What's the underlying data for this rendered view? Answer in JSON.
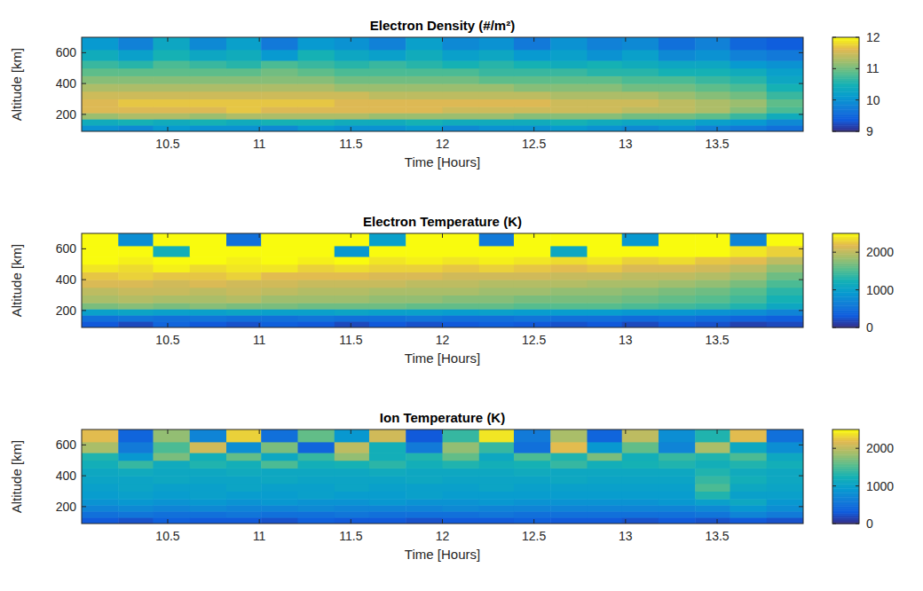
{
  "chart_data": [
    {
      "type": "heatmap",
      "title": "Electron Density (#/m²)",
      "x_label": "Time [Hours]",
      "y_label": "Altitude [km]",
      "xlim": [
        10.03,
        13.97
      ],
      "ylim": [
        90,
        700
      ],
      "xticks": [
        10.5,
        11,
        11.5,
        12,
        12.5,
        13,
        13.5
      ],
      "yticks": [
        200,
        400,
        600
      ],
      "x_bins": [
        10.03,
        10.23,
        10.42,
        10.62,
        10.82,
        11.01,
        11.21,
        11.41,
        11.6,
        11.8,
        12.0,
        12.2,
        12.39,
        12.59,
        12.79,
        12.98,
        13.18,
        13.38,
        13.57,
        13.77,
        13.97
      ],
      "y_bins": [
        90,
        130,
        170,
        210,
        250,
        300,
        350,
        400,
        450,
        500,
        550,
        620,
        700
      ],
      "colorbar": {
        "range": [
          9,
          12
        ],
        "ticks": [
          9,
          10,
          11,
          12
        ]
      },
      "cells": [
        [
          10.0,
          9.9,
          10.1,
          10.0,
          10.0,
          9.9,
          10.1,
          10.0,
          10.0,
          10.1,
          9.9,
          10.0,
          10.0,
          10.1,
          10.0,
          9.9,
          10.0,
          9.8,
          9.7,
          9.6
        ],
        [
          10.4,
          10.5,
          10.4,
          10.5,
          10.4,
          10.5,
          10.5,
          10.4,
          10.4,
          10.5,
          10.4,
          10.4,
          10.4,
          10.5,
          10.4,
          10.3,
          10.3,
          10.2,
          10.1,
          9.9
        ],
        [
          11.2,
          11.3,
          11.3,
          11.2,
          11.3,
          11.3,
          11.3,
          11.3,
          11.2,
          11.2,
          11.2,
          11.2,
          11.1,
          11.1,
          11.1,
          11.0,
          11.0,
          10.9,
          10.7,
          10.4
        ],
        [
          11.6,
          11.6,
          11.6,
          11.6,
          11.7,
          11.6,
          11.6,
          11.6,
          11.6,
          11.6,
          11.5,
          11.5,
          11.5,
          11.5,
          11.5,
          11.4,
          11.4,
          11.3,
          11.1,
          10.8
        ],
        [
          11.6,
          11.7,
          11.7,
          11.7,
          11.7,
          11.7,
          11.7,
          11.6,
          11.6,
          11.6,
          11.6,
          11.6,
          11.6,
          11.5,
          11.5,
          11.5,
          11.4,
          11.3,
          11.2,
          10.9
        ],
        [
          11.5,
          11.5,
          11.5,
          11.5,
          11.5,
          11.5,
          11.5,
          11.5,
          11.4,
          11.4,
          11.4,
          11.4,
          11.4,
          11.3,
          11.3,
          11.3,
          11.2,
          11.1,
          11.0,
          10.7
        ],
        [
          11.3,
          11.3,
          11.3,
          11.3,
          11.3,
          11.3,
          11.3,
          11.2,
          11.2,
          11.2,
          11.2,
          11.2,
          11.1,
          11.1,
          11.1,
          11.0,
          11.0,
          10.9,
          10.8,
          10.5
        ],
        [
          11.1,
          11.1,
          11.1,
          11.1,
          11.1,
          11.1,
          11.1,
          11.0,
          11.0,
          11.0,
          11.0,
          10.9,
          10.9,
          10.9,
          10.9,
          10.8,
          10.8,
          10.7,
          10.6,
          10.3
        ],
        [
          10.9,
          10.9,
          10.9,
          10.9,
          10.9,
          11.0,
          10.9,
          10.8,
          10.8,
          10.8,
          10.8,
          10.7,
          10.7,
          10.7,
          10.6,
          10.6,
          10.5,
          10.5,
          10.4,
          10.2
        ],
        [
          10.7,
          10.6,
          10.8,
          10.7,
          10.6,
          10.8,
          10.7,
          10.6,
          10.7,
          10.6,
          10.5,
          10.6,
          10.5,
          10.4,
          10.5,
          10.4,
          10.3,
          10.3,
          10.1,
          10.0
        ],
        [
          10.4,
          10.2,
          10.5,
          10.3,
          10.4,
          10.1,
          10.5,
          10.3,
          10.2,
          10.4,
          10.2,
          10.3,
          10.1,
          10.2,
          10.0,
          10.2,
          9.9,
          10.0,
          9.8,
          9.7
        ],
        [
          10.1,
          9.8,
          10.3,
          9.9,
          10.2,
          9.7,
          10.1,
          10.0,
          9.8,
          10.2,
          9.9,
          10.0,
          9.7,
          10.0,
          9.8,
          9.9,
          9.6,
          9.8,
          9.5,
          9.4
        ]
      ]
    },
    {
      "type": "heatmap",
      "title": "Electron Temperature (K)",
      "x_label": "Time [Hours]",
      "y_label": "Altitude [km]",
      "xlim": [
        10.03,
        13.97
      ],
      "ylim": [
        90,
        700
      ],
      "xticks": [
        10.5,
        11,
        11.5,
        12,
        12.5,
        13,
        13.5
      ],
      "yticks": [
        200,
        400,
        600
      ],
      "x_bins": [
        10.03,
        10.23,
        10.42,
        10.62,
        10.82,
        11.01,
        11.21,
        11.41,
        11.6,
        11.8,
        12.0,
        12.2,
        12.39,
        12.59,
        12.79,
        12.98,
        13.18,
        13.38,
        13.57,
        13.77,
        13.97
      ],
      "y_bins": [
        90,
        130,
        170,
        210,
        250,
        300,
        350,
        400,
        450,
        500,
        550,
        620,
        700
      ],
      "colorbar": {
        "range": [
          0,
          2500
        ],
        "ticks": [
          0,
          1000,
          2000
        ]
      },
      "cells": [
        [
          300,
          200,
          400,
          300,
          250,
          350,
          300,
          200,
          300,
          250,
          300,
          350,
          300,
          250,
          300,
          200,
          300,
          250,
          150,
          200
        ],
        [
          500,
          550,
          500,
          550,
          500,
          500,
          550,
          500,
          500,
          550,
          500,
          500,
          550,
          500,
          500,
          450,
          500,
          450,
          400,
          350
        ],
        [
          1000,
          1050,
          1000,
          1000,
          1050,
          1000,
          1000,
          1050,
          1000,
          1000,
          950,
          1000,
          950,
          950,
          950,
          900,
          900,
          850,
          800,
          700
        ],
        [
          1700,
          1750,
          1700,
          1750,
          1700,
          1700,
          1650,
          1650,
          1650,
          1600,
          1600,
          1600,
          1550,
          1550,
          1550,
          1500,
          1450,
          1400,
          1300,
          1100
        ],
        [
          1900,
          1950,
          1900,
          1900,
          1950,
          1850,
          1850,
          1850,
          1800,
          1800,
          1750,
          1750,
          1700,
          1700,
          1700,
          1650,
          1600,
          1550,
          1450,
          1250
        ],
        [
          2000,
          2050,
          2050,
          2000,
          2050,
          2000,
          1950,
          1950,
          1900,
          1900,
          1900,
          1850,
          1850,
          1800,
          1800,
          1750,
          1700,
          1650,
          1550,
          1350
        ],
        [
          2150,
          2150,
          2100,
          2150,
          2100,
          2100,
          2050,
          2050,
          2050,
          2000,
          2000,
          1950,
          1950,
          1950,
          1900,
          1900,
          1850,
          1800,
          1700,
          1500
        ],
        [
          2250,
          2300,
          2250,
          2250,
          2300,
          2200,
          2200,
          2200,
          2150,
          2150,
          2100,
          2100,
          2100,
          2050,
          2050,
          2000,
          2000,
          1950,
          1850,
          1650
        ],
        [
          2400,
          2350,
          2450,
          2350,
          2400,
          2400,
          2300,
          2350,
          2300,
          2300,
          2250,
          2300,
          2250,
          2200,
          2250,
          2150,
          2150,
          2100,
          2000,
          1800
        ],
        [
          2500,
          2450,
          2500,
          2500,
          2450,
          2500,
          2450,
          2500,
          2400,
          2450,
          2400,
          2450,
          2400,
          2350,
          2400,
          2300,
          2350,
          2250,
          2200,
          2000
        ],
        [
          2500,
          2500,
          1200,
          2500,
          2500,
          2500,
          2500,
          900,
          2500,
          2500,
          2500,
          2500,
          2500,
          1100,
          2500,
          2500,
          2500,
          2500,
          2400,
          2300
        ],
        [
          2500,
          800,
          2500,
          2500,
          500,
          2500,
          2500,
          2500,
          1000,
          2500,
          2500,
          600,
          2500,
          2500,
          2500,
          900,
          2500,
          2500,
          700,
          2500
        ]
      ]
    },
    {
      "type": "heatmap",
      "title": "Ion Temperature (K)",
      "x_label": "Time [Hours]",
      "y_label": "Altitude [km]",
      "xlim": [
        10.03,
        13.97
      ],
      "ylim": [
        90,
        700
      ],
      "xticks": [
        10.5,
        11,
        11.5,
        12,
        12.5,
        13,
        13.5
      ],
      "yticks": [
        200,
        400,
        600
      ],
      "x_bins": [
        10.03,
        10.23,
        10.42,
        10.62,
        10.82,
        11.01,
        11.21,
        11.41,
        11.6,
        11.8,
        12.0,
        12.2,
        12.39,
        12.59,
        12.79,
        12.98,
        13.18,
        13.38,
        13.57,
        13.77,
        13.97
      ],
      "y_bins": [
        90,
        130,
        170,
        210,
        250,
        300,
        350,
        400,
        450,
        500,
        550,
        620,
        700
      ],
      "colorbar": {
        "range": [
          0,
          2500
        ],
        "ticks": [
          0,
          1000,
          2000
        ]
      },
      "cells": [
        [
          300,
          250,
          350,
          300,
          300,
          250,
          350,
          300,
          300,
          250,
          300,
          300,
          350,
          300,
          300,
          250,
          300,
          250,
          300,
          250
        ],
        [
          500,
          550,
          500,
          500,
          550,
          500,
          500,
          550,
          500,
          500,
          500,
          550,
          500,
          500,
          500,
          500,
          500,
          550,
          700,
          600
        ],
        [
          700,
          750,
          700,
          750,
          700,
          700,
          750,
          700,
          700,
          700,
          750,
          700,
          700,
          700,
          700,
          700,
          700,
          750,
          900,
          800
        ],
        [
          850,
          900,
          850,
          900,
          850,
          900,
          850,
          850,
          900,
          850,
          850,
          900,
          850,
          850,
          850,
          850,
          900,
          1000,
          1100,
          900
        ],
        [
          950,
          1000,
          950,
          1000,
          950,
          950,
          1000,
          950,
          950,
          1000,
          950,
          950,
          950,
          950,
          950,
          950,
          950,
          1300,
          1000,
          1000
        ],
        [
          1000,
          1050,
          1000,
          1000,
          1050,
          1000,
          1000,
          1050,
          1000,
          1000,
          1000,
          1050,
          1000,
          1000,
          1000,
          1000,
          1000,
          1500,
          1100,
          1050
        ],
        [
          1050,
          1050,
          1100,
          1050,
          1050,
          1100,
          1050,
          1050,
          1050,
          1100,
          1050,
          1050,
          1050,
          1100,
          1050,
          1050,
          1050,
          1400,
          1200,
          1100
        ],
        [
          1100,
          1150,
          1100,
          1100,
          1150,
          1100,
          1100,
          1100,
          1150,
          1100,
          1100,
          1100,
          1150,
          1100,
          1100,
          1100,
          1100,
          1300,
          1150,
          1100
        ],
        [
          1200,
          1400,
          1150,
          1300,
          1200,
          1500,
          1200,
          1250,
          1350,
          1200,
          1300,
          1200,
          1250,
          1400,
          1200,
          1250,
          1300,
          1200,
          1300,
          1200
        ],
        [
          1300,
          900,
          1700,
          1200,
          1600,
          1100,
          1400,
          1800,
          1200,
          1300,
          1600,
          1100,
          1500,
          1300,
          1700,
          1200,
          1400,
          1300,
          1500,
          1100
        ],
        [
          1900,
          600,
          1500,
          2100,
          800,
          1700,
          400,
          2000,
          1200,
          600,
          1800,
          1400,
          500,
          2200,
          900,
          1600,
          700,
          1900,
          1100,
          800
        ],
        [
          2200,
          400,
          1800,
          700,
          2300,
          500,
          1600,
          900,
          2100,
          300,
          1400,
          2400,
          600,
          1900,
          400,
          2000,
          800,
          1300,
          2200,
          500
        ]
      ]
    }
  ]
}
